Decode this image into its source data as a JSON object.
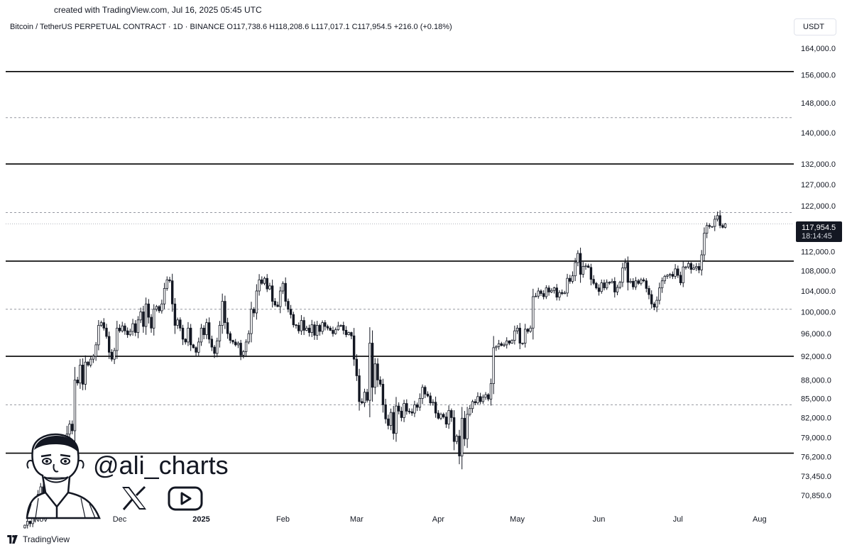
{
  "header": {
    "created_with": "created with TradingView.com, Jul 16, 2025 05:45 UTC",
    "legend": "Bitcoin / TetherUS PERPETUAL CONTRACT · 1D · BINANCE  O117,738.6  H118,208.6  L117,017.1  C117,954.5  +216.0 (+0.18%)",
    "currency": "USDT"
  },
  "footer": {
    "brand": "TradingView"
  },
  "watermark": {
    "handle": "@ali_charts",
    "icons": [
      "avatar-caricature",
      "x-logo-icon",
      "youtube-icon"
    ]
  },
  "price_tag": {
    "price": "117,954.5",
    "countdown": "18:14:45"
  },
  "chart_data": {
    "type": "candlestick",
    "title": "",
    "xlabel": "",
    "ylabel": "",
    "y_axis": {
      "ticks": [
        {
          "value": 164000,
          "label": "164,000.0"
        },
        {
          "value": 156000,
          "label": "156,000.0"
        },
        {
          "value": 148000,
          "label": "148,000.0"
        },
        {
          "value": 140000,
          "label": "140,000.0"
        },
        {
          "value": 132000,
          "label": "132,000.0"
        },
        {
          "value": 127000,
          "label": "127,000.0"
        },
        {
          "value": 122000,
          "label": "122,000.0"
        },
        {
          "value": 112000,
          "label": "112,000.0"
        },
        {
          "value": 108000,
          "label": "108,000.0"
        },
        {
          "value": 104000,
          "label": "104,000.0"
        },
        {
          "value": 100000,
          "label": "100,000.0"
        },
        {
          "value": 96000,
          "label": "96,000.0"
        },
        {
          "value": 92000,
          "label": "92,000.0"
        },
        {
          "value": 88000,
          "label": "88,000.0"
        },
        {
          "value": 85000,
          "label": "85,000.0"
        },
        {
          "value": 82000,
          "label": "82,000.0"
        },
        {
          "value": 79000,
          "label": "79,000.0"
        },
        {
          "value": 76200,
          "label": "76,200.0"
        },
        {
          "value": 73450,
          "label": "73,450.0"
        },
        {
          "value": 70850,
          "label": "70,850.0"
        }
      ],
      "scale": "log",
      "range": [
        69000,
        168000
      ]
    },
    "x_axis": {
      "labels": [
        {
          "date": "2024-11-01",
          "label": "Nov",
          "bold": false
        },
        {
          "date": "2024-12-01",
          "label": "Dec",
          "bold": false
        },
        {
          "date": "2025-01-01",
          "label": "2025",
          "bold": true
        },
        {
          "date": "2025-02-01",
          "label": "Feb",
          "bold": false
        },
        {
          "date": "2025-03-01",
          "label": "Mar",
          "bold": false
        },
        {
          "date": "2025-04-01",
          "label": "Apr",
          "bold": false
        },
        {
          "date": "2025-05-01",
          "label": "May",
          "bold": false
        },
        {
          "date": "2025-06-01",
          "label": "Jun",
          "bold": false
        },
        {
          "date": "2025-07-01",
          "label": "Jul",
          "bold": false
        },
        {
          "date": "2025-08-01",
          "label": "Aug",
          "bold": false
        }
      ],
      "range": [
        "2024-10-26",
        "2025-08-14"
      ]
    },
    "levels": {
      "solid": [
        157000,
        132000,
        110000,
        92000,
        76700
      ],
      "dashed": [
        144000,
        120500,
        100500,
        84000
      ],
      "last_price": 117954.5
    },
    "series": [
      {
        "start_date": "2024-10-26",
        "close_series": [
          67000,
          67500,
          67200,
          68000,
          69500,
          71000,
          72000,
          70000,
          69500,
          68800,
          69000,
          70500,
          75000,
          76000,
          76500,
          76300,
          79500,
          81000,
          80000,
          88000,
          87500,
          90500,
          87300,
          91000,
          90500,
          91500,
          92000,
          94000,
          97500,
          98000,
          97000,
          95500,
          92700,
          91500,
          93000,
          97000,
          96500,
          97400,
          96500,
          95800,
          96400,
          97800,
          96200,
          98500,
          100000,
          97300,
          101500,
          99000,
          97000,
          100500,
          101000,
          100200,
          101500,
          104500,
          106200,
          106000,
          101500,
          97500,
          98500,
          97000,
          95000,
          94500,
          97000,
          94000,
          93500,
          92700,
          94500,
          97000,
          95800,
          98000,
          95000,
          93600,
          92500,
          94700,
          97500,
          102000,
          98000,
          96000,
          94800,
          94500,
          94000,
          94300,
          92200,
          92800,
          94500,
          96000,
          100500,
          99800,
          104000,
          106200,
          105500,
          106500,
          104400,
          105000,
          102000,
          101300,
          101000,
          104000,
          105500,
          102000,
          100500,
          99500,
          97600,
          97500,
          96500,
          98400,
          96600,
          97000,
          96200,
          97600,
          95700,
          97500,
          96400,
          98000,
          97300,
          97000,
          96600,
          96000,
          96700,
          97400,
          97500,
          96600,
          95800,
          96200,
          95600,
          91500,
          88700,
          84500,
          84300,
          86000,
          84700,
          94300,
          86800,
          90700,
          88000,
          87300,
          84000,
          81800,
          80800,
          82800,
          79600,
          83800,
          83000,
          82000,
          84200,
          83000,
          82900,
          82700,
          84000,
          83600,
          85000,
          86800,
          85700,
          85400,
          84300,
          84400,
          82700,
          81900,
          82500,
          82100,
          81000,
          83100,
          82000,
          78400,
          79200,
          76300,
          81900,
          78800,
          82500,
          83400,
          84500,
          84300,
          85300,
          84500,
          85200,
          85600,
          84900,
          87400,
          93500,
          93700,
          94200,
          93900,
          94000,
          94700,
          94300,
          94800,
          96500,
          97000,
          94300,
          94300,
          96800,
          96400,
          97000,
          102900,
          103000,
          104000,
          103500,
          102900,
          104600,
          103800,
          104100,
          104600,
          102800,
          103700,
          103500,
          103600,
          106500,
          105900,
          107000,
          109700,
          111600,
          107300,
          108900,
          109000,
          108700,
          106300,
          105500,
          104600,
          103900,
          105600,
          104600,
          105700,
          105600,
          105900,
          103800,
          104700,
          105700,
          108600,
          109700,
          105700,
          105900,
          104800,
          106000,
          105500,
          106200,
          106000,
          104500,
          103300,
          101500,
          100900,
          102200,
          104600,
          106000,
          106900,
          107100,
          107300,
          106900,
          108400,
          107100,
          105600,
          108800,
          108800,
          109500,
          108300,
          108600,
          108900,
          108200,
          111300,
          115900,
          117600,
          117400,
          117400,
          119000,
          119800,
          117600,
          117200,
          117950
        ]
      }
    ]
  }
}
